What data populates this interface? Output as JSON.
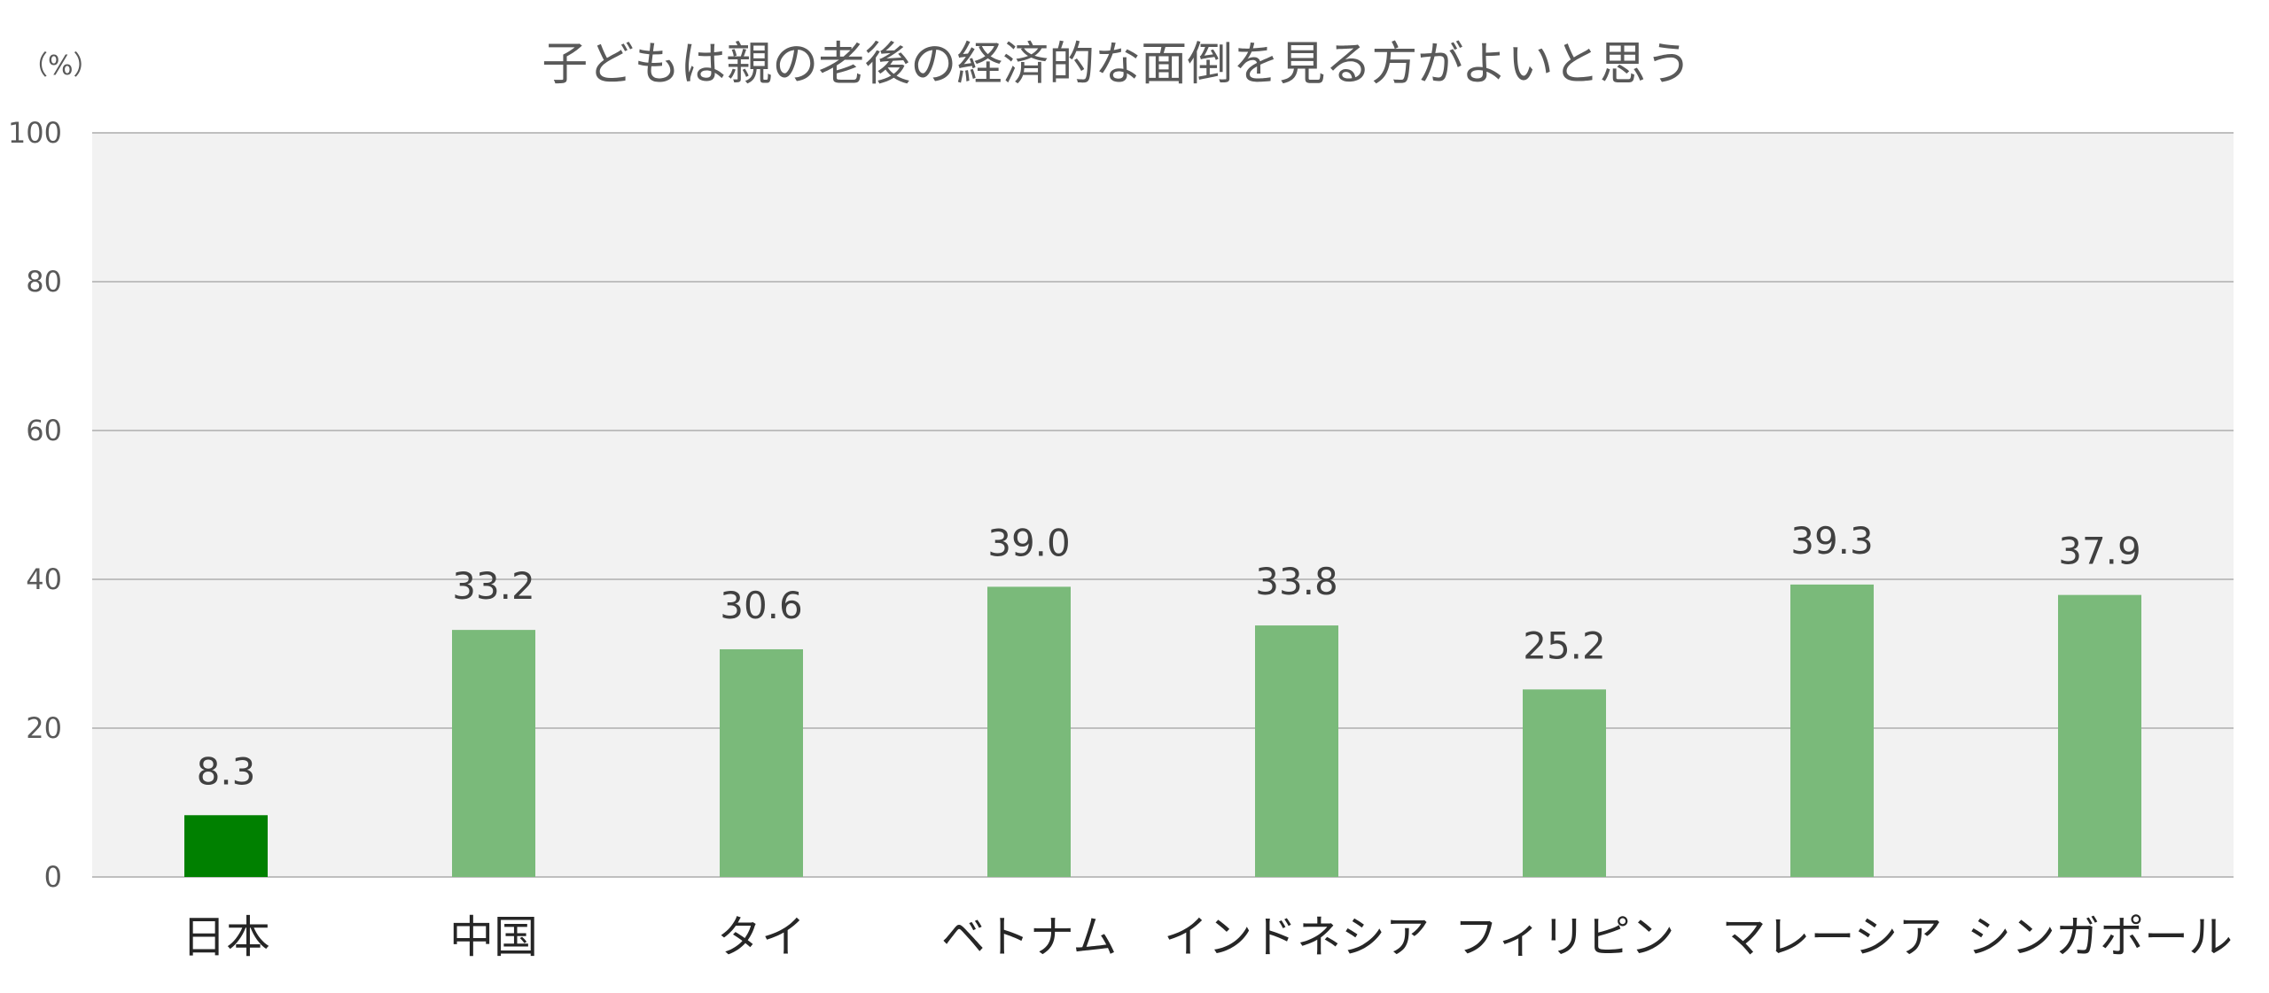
{
  "chart_data": {
    "type": "bar",
    "title": "子どもは親の老後の経済的な面倒を見る方がよいと思う",
    "unit_label": "（%）",
    "categories": [
      "日本",
      "中国",
      "タイ",
      "ベトナム",
      "インドネシア",
      "フィリピン",
      "マレーシア",
      "シンガポール"
    ],
    "values": [
      8.3,
      33.2,
      30.6,
      39.0,
      33.8,
      25.2,
      39.3,
      37.9
    ],
    "value_labels": [
      "8.3",
      "33.2",
      "30.6",
      "39.0",
      "33.8",
      "25.2",
      "39.3",
      "37.9"
    ],
    "ylim": [
      0,
      100
    ],
    "yticks": [
      0,
      20,
      40,
      60,
      80,
      100
    ],
    "ytick_labels": [
      "0",
      "20",
      "40",
      "60",
      "80",
      "100"
    ],
    "grid": true,
    "highlight_index": 0,
    "colors": {
      "highlight": "#008000",
      "bar": "#7aba7a",
      "plot_bg": "#f2f2f2",
      "grid": "#bfbfbf"
    }
  }
}
